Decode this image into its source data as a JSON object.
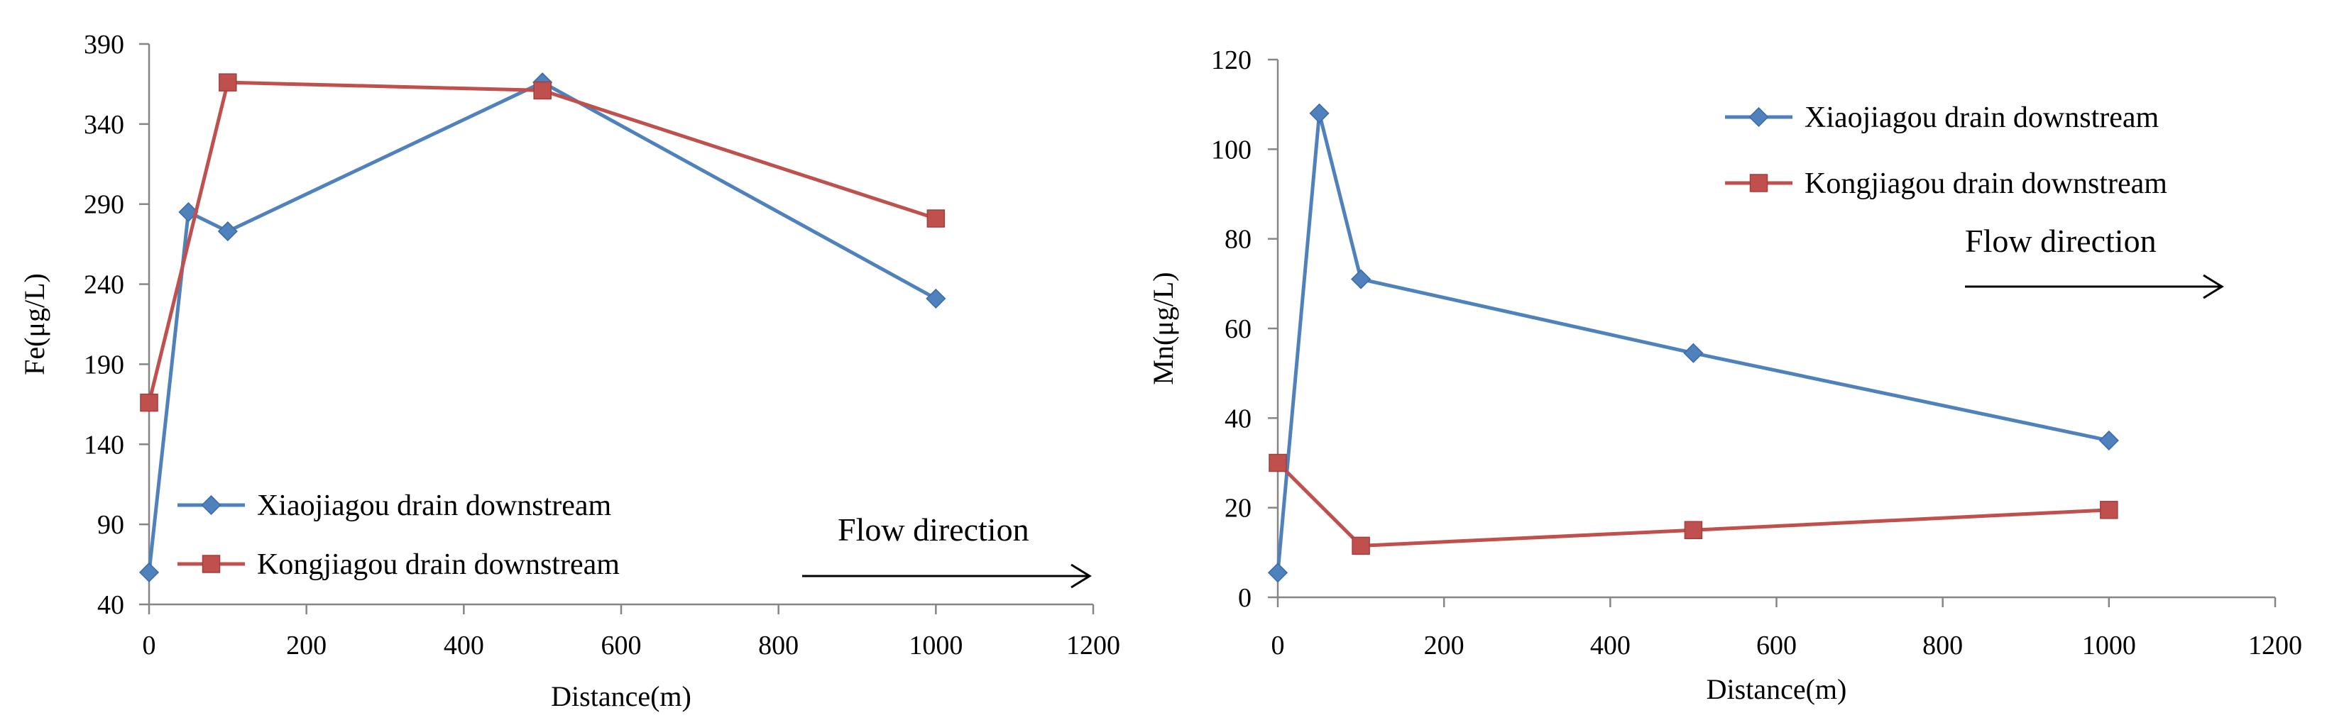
{
  "chart_data": [
    {
      "type": "line",
      "title": "",
      "xlabel": "Distance(m)",
      "ylabel": "Fe(μg/L)",
      "xlim": [
        0,
        1200
      ],
      "ylim": [
        40,
        390
      ],
      "x_ticks": [
        "0",
        "200",
        "400",
        "600",
        "800",
        "1000",
        "1200"
      ],
      "y_ticks": [
        "40",
        "90",
        "140",
        "190",
        "240",
        "290",
        "340",
        "390"
      ],
      "grid": false,
      "legend_position": "bottom-left",
      "annotation": "Flow direction",
      "series": [
        {
          "name": "Xiaojiagou drain downstream",
          "color": "#4F81BD",
          "marker": "diamond",
          "x": [
            0,
            50,
            100,
            500,
            1000
          ],
          "y": [
            60,
            285,
            273,
            366,
            231
          ]
        },
        {
          "name": "Kongjiagou drain downstream",
          "color": "#C0504D",
          "marker": "square",
          "x": [
            0,
            100,
            500,
            1000
          ],
          "y": [
            166,
            366,
            361,
            281
          ]
        }
      ]
    },
    {
      "type": "line",
      "title": "",
      "xlabel": "Distance(m)",
      "ylabel": "Mn(μg/L)",
      "xlim": [
        0,
        1200
      ],
      "ylim": [
        0,
        120
      ],
      "x_ticks": [
        "0",
        "200",
        "400",
        "600",
        "800",
        "1000",
        "1200"
      ],
      "y_ticks": [
        "0",
        "20",
        "40",
        "60",
        "80",
        "100",
        "120"
      ],
      "grid": false,
      "legend_position": "top-right",
      "annotation": "Flow direction",
      "series": [
        {
          "name": "Xiaojiagou drain downstream",
          "color": "#4F81BD",
          "marker": "diamond",
          "x": [
            0,
            50,
            100,
            500,
            1000
          ],
          "y": [
            5.5,
            108,
            71,
            54.5,
            35
          ]
        },
        {
          "name": "Kongjiagou drain downstream",
          "color": "#C0504D",
          "marker": "square",
          "x": [
            0,
            100,
            500,
            1000
          ],
          "y": [
            30,
            11.5,
            15,
            19.5
          ]
        }
      ]
    }
  ]
}
